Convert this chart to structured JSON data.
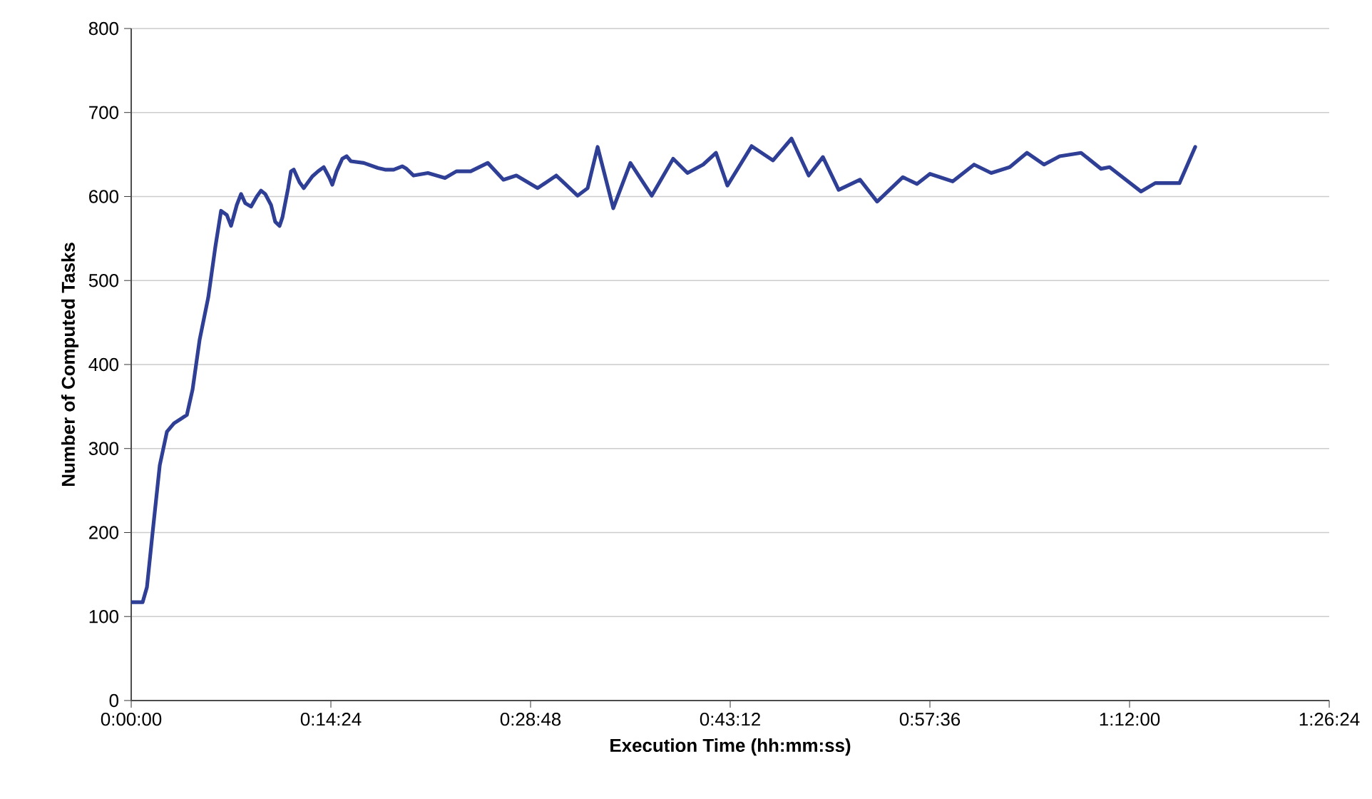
{
  "chart_data": {
    "type": "line",
    "xlabel": "Execution Time (hh:mm:ss)",
    "ylabel": "Number of Computed Tasks",
    "xlim": [
      0,
      1.44
    ],
    "ylim": [
      0,
      800
    ],
    "xticks": [
      {
        "value": 0,
        "label": "0:00:00"
      },
      {
        "value": 0.24,
        "label": "0:14:24"
      },
      {
        "value": 0.48,
        "label": "0:28:48"
      },
      {
        "value": 0.72,
        "label": "0:43:12"
      },
      {
        "value": 0.96,
        "label": "0:57:36"
      },
      {
        "value": 1.2,
        "label": "1:12:00"
      },
      {
        "value": 1.44,
        "label": "1:26:24"
      }
    ],
    "yticks": [
      0,
      100,
      200,
      300,
      400,
      500,
      600,
      700,
      800
    ],
    "grid": "y",
    "marker": "none",
    "line_style": "solid",
    "series": [
      {
        "color": "#2e3f95",
        "x": [
          0,
          0.0137,
          0.0189,
          0.0257,
          0.0343,
          0.0429,
          0.0514,
          0.0669,
          0.0737,
          0.0823,
          0.0926,
          0.1011,
          0.108,
          0.1149,
          0.12,
          0.1269,
          0.132,
          0.1371,
          0.144,
          0.1509,
          0.156,
          0.1611,
          0.168,
          0.1731,
          0.1783,
          0.1817,
          0.1886,
          0.192,
          0.1954,
          0.2023,
          0.2074,
          0.2177,
          0.2246,
          0.2314,
          0.2383,
          0.2417,
          0.2469,
          0.2537,
          0.2589,
          0.264,
          0.2794,
          0.2966,
          0.3051,
          0.3154,
          0.3257,
          0.3309,
          0.3394,
          0.3566,
          0.3771,
          0.3909,
          0.408,
          0.4286,
          0.4474,
          0.4629,
          0.4886,
          0.5109,
          0.5366,
          0.5486,
          0.5606,
          0.5794,
          0.6,
          0.6257,
          0.6514,
          0.6686,
          0.6874,
          0.7029,
          0.7166,
          0.7457,
          0.7714,
          0.7937,
          0.8143,
          0.8314,
          0.8503,
          0.876,
          0.8966,
          0.9274,
          0.9446,
          0.96,
          0.9874,
          1.0131,
          1.0337,
          1.056,
          1.0766,
          1.0971,
          1.116,
          1.1417,
          1.1657,
          1.176,
          1.2137,
          1.2309,
          1.26,
          1.2789
        ],
        "values": [
          117,
          117,
          135,
          200,
          280,
          320,
          330,
          340,
          370,
          430,
          480,
          540,
          583,
          578,
          565,
          590,
          603,
          592,
          588,
          600,
          607,
          603,
          590,
          570,
          565,
          575,
          610,
          630,
          632,
          617,
          610,
          624,
          630,
          635,
          622,
          614,
          630,
          645,
          648,
          642,
          640,
          634,
          632,
          632,
          636,
          633,
          625,
          628,
          622,
          630,
          630,
          640,
          620,
          625,
          610,
          625,
          601,
          610,
          659,
          586,
          640,
          601,
          645,
          628,
          638,
          652,
          613,
          660,
          643,
          669,
          625,
          647,
          608,
          620,
          594,
          623,
          615,
          627,
          618,
          638,
          628,
          635,
          652,
          638,
          648,
          652,
          633,
          635,
          606,
          616,
          616,
          659
        ]
      }
    ]
  }
}
